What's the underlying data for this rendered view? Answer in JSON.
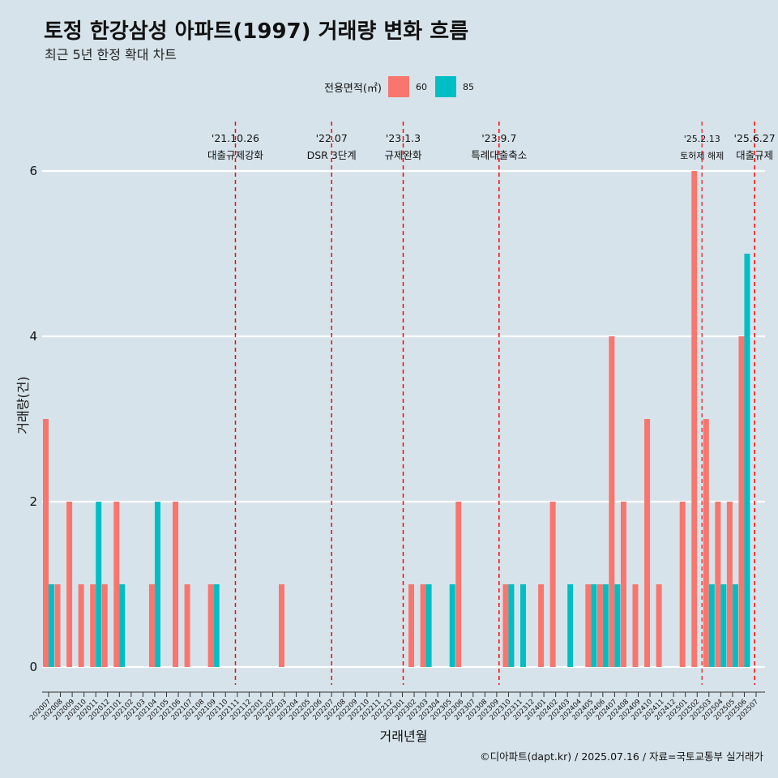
{
  "title": "토정 한강삼성 아파트(1997) 거래량 변화 흐름",
  "subtitle": "최근 5년 한정 확대 차트",
  "caption": "©디아파트(dapt.kr) / 2025.07.16 / 자료=국토교통부 실거래가",
  "legend": {
    "title": "전용면적(㎡)",
    "items": [
      {
        "label": "60",
        "color": "#f8766d"
      },
      {
        "label": "85",
        "color": "#00bfc4"
      }
    ]
  },
  "chart_data": {
    "type": "bar",
    "xlabel": "거래년월",
    "ylabel": "거래량(건)",
    "ylim": [
      0,
      6.5
    ],
    "yticks": [
      0,
      2,
      4,
      6
    ],
    "grid": true,
    "legend_position": "top",
    "categories": [
      "202007",
      "202008",
      "202009",
      "202010",
      "202011",
      "202012",
      "202101",
      "202102",
      "202103",
      "202104",
      "202105",
      "202106",
      "202107",
      "202108",
      "202109",
      "202110",
      "202111",
      "202112",
      "202201",
      "202202",
      "202203",
      "202204",
      "202205",
      "202206",
      "202207",
      "202208",
      "202209",
      "202210",
      "202211",
      "202212",
      "202301",
      "202302",
      "202303",
      "202304",
      "202305",
      "202306",
      "202307",
      "202308",
      "202309",
      "202310",
      "202311",
      "202312",
      "202401",
      "202402",
      "202403",
      "202404",
      "202405",
      "202406",
      "202407",
      "202408",
      "202409",
      "202410",
      "202411",
      "202412",
      "202501",
      "202502",
      "202503",
      "202504",
      "202505",
      "202506",
      "202507"
    ],
    "series": [
      {
        "name": "60",
        "color": "#f8766d",
        "values": [
          3,
          1,
          2,
          1,
          1,
          1,
          2,
          0,
          0,
          1,
          0,
          2,
          1,
          0,
          1,
          0,
          0,
          0,
          0,
          0,
          1,
          0,
          0,
          0,
          0,
          0,
          0,
          0,
          0,
          0,
          0,
          1,
          1,
          0,
          0,
          2,
          0,
          0,
          0,
          1,
          0,
          0,
          1,
          2,
          0,
          0,
          1,
          1,
          4,
          2,
          1,
          3,
          1,
          0,
          2,
          6,
          3,
          2,
          2,
          4,
          0
        ]
      },
      {
        "name": "85",
        "color": "#00bfc4",
        "values": [
          1,
          0,
          0,
          0,
          2,
          0,
          1,
          0,
          0,
          2,
          0,
          0,
          0,
          0,
          1,
          0,
          0,
          0,
          0,
          0,
          0,
          0,
          0,
          0,
          0,
          0,
          0,
          0,
          0,
          0,
          0,
          0,
          1,
          0,
          1,
          0,
          0,
          0,
          0,
          1,
          1,
          0,
          0,
          0,
          1,
          0,
          1,
          1,
          1,
          0,
          0,
          0,
          0,
          0,
          0,
          0,
          1,
          1,
          1,
          5,
          0
        ]
      }
    ],
    "annotations": [
      {
        "date": "'21.10.26",
        "label": "대출규제강화",
        "month": "202110",
        "frac": 0.84,
        "style": "bold"
      },
      {
        "date": "'22.07",
        "label": "DSR 3단계",
        "month": "202207",
        "frac": 0.0,
        "style": "bold"
      },
      {
        "date": "'23.1.3",
        "label": "규제완화",
        "month": "202301",
        "frac": 0.07,
        "style": "bold"
      },
      {
        "date": "'23.9.7",
        "label": "특례대출축소",
        "month": "202309",
        "frac": 0.2,
        "style": "bold"
      },
      {
        "date": "'25.2.13",
        "label": "토허제 해제",
        "month": "202502",
        "frac": 0.41,
        "style": "light"
      },
      {
        "date": "'25.6.27",
        "label": "대출규제",
        "month": "202506",
        "frac": 0.87,
        "style": "bold"
      }
    ]
  }
}
